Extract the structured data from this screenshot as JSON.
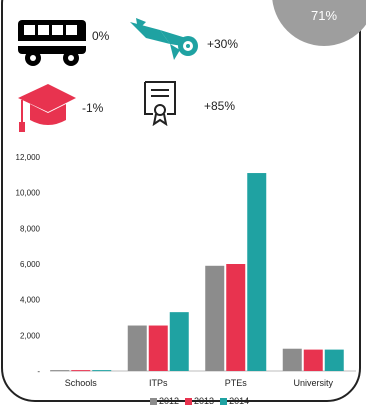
{
  "badge": {
    "value": "71%"
  },
  "stats": [
    {
      "icon": "bus-icon",
      "value": "0%"
    },
    {
      "icon": "diploma-scroll-icon",
      "value": "+30%"
    },
    {
      "icon": "graduation-cap-icon",
      "value": "-1%"
    },
    {
      "icon": "certificate-icon",
      "value": "+85%"
    }
  ],
  "colors": {
    "s2012": "#8c8c8c",
    "s2013": "#e8334f",
    "s2014": "#1fa2a2",
    "cap": "#e8334f",
    "scroll": "#1fa2a2",
    "badge": "#9e9e9e"
  },
  "chart_data": {
    "type": "bar",
    "categories": [
      "Schools",
      "ITPs",
      "PTEs",
      "University"
    ],
    "series": [
      {
        "name": "2012",
        "color": "#8c8c8c",
        "values": [
          50,
          2550,
          5900,
          1250
        ]
      },
      {
        "name": "2013",
        "color": "#e8334f",
        "values": [
          50,
          2550,
          6000,
          1200
        ]
      },
      {
        "name": "2014",
        "color": "#1fa2a2",
        "values": [
          50,
          3300,
          11100,
          1200
        ]
      }
    ],
    "ylim": [
      0,
      12000
    ],
    "yticks": [
      "-",
      "2,000",
      "4,000",
      "6,000",
      "8,000",
      "10,000",
      "12,000"
    ],
    "legend_position": "bottom-center",
    "grid": false
  }
}
